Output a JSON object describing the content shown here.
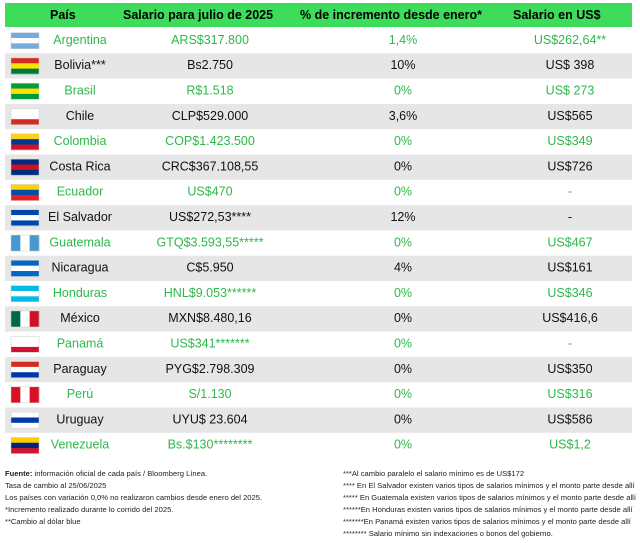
{
  "table": {
    "header": [
      "País",
      "Salario para julio de 2025",
      "% de incremento desde enero*",
      "Salario en US$"
    ],
    "rows": [
      [
        "Argentina",
        "ARS$317.800",
        "1,4%",
        "US$262,64**"
      ],
      [
        "Bolivia***",
        "Bs2.750",
        "10%",
        "US$ 398"
      ],
      [
        "Brasil",
        "R$1.518",
        "0%",
        "US$ 273"
      ],
      [
        "Chile",
        "CLP$529.000",
        "3,6%",
        "US$565"
      ],
      [
        "Colombia",
        "COP$1.423.500",
        "0%",
        "US$349"
      ],
      [
        "Costa Rica",
        "CRC$367.108,55",
        "0%",
        "US$726"
      ],
      [
        "Ecuador",
        "US$470",
        "0%",
        "-"
      ],
      [
        "El Salvador",
        "US$272,53****",
        "12%",
        "-"
      ],
      [
        "Guatemala",
        "GTQ$3.593,55*****",
        "0%",
        "US$467"
      ],
      [
        "Nicaragua",
        "C$5.950",
        "4%",
        "US$161"
      ],
      [
        "Honduras",
        "HNL$9.053******",
        "0%",
        "US$346"
      ],
      [
        "México",
        "MXN$8.480,16",
        "0%",
        "US$416,6"
      ],
      [
        "Panamá",
        "US$341*******",
        "0%",
        "-"
      ],
      [
        "Paraguay",
        "PYG$2.798.309",
        "0%",
        "US$350"
      ],
      [
        "Perú",
        "S/1.130",
        "0%",
        "US$316"
      ],
      [
        "Uruguay",
        "UYU$ 23.604",
        "0%",
        "US$586"
      ],
      [
        "Venezuela",
        "Bs.$130********",
        "0%",
        "US$1,2"
      ]
    ]
  },
  "footnotes": {
    "source_label": "Fuente:",
    "source_text": " información oficial de cada país / Bloomberg Línea.",
    "left": [
      "Tasa de cambio al 25/06/2025",
      "Los países con variación 0,0% no realizaron cambios desde enero del 2025.",
      "*Incremento realizado durante lo corrido del 2025.",
      "**Cambio al dólar blue"
    ],
    "right": [
      "***Al cambio paralelo el salario mínimo es de US$172",
      "**** En El Salvador existen varios tipos de salarios mínimos y el monto parte desde allí",
      "***** En Guatemala existen varios tipos de salarios mínimos y el monto parte desde allí",
      "******En Honduras existen varios tipos de salarios mínimos y el monto parte desde allí",
      "*******En Panamá existen varios tipos de salarios mínimos y el monto parte desde allí",
      "******** Salario mínimo sin indexaciones o bonos del gobierno."
    ]
  }
}
